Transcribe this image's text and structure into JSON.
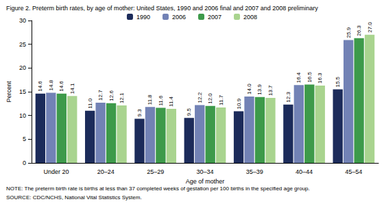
{
  "chart_data": {
    "type": "bar",
    "title": "Figure 2. Preterm birth rates, by age of mother: United States, 1990 and 2006 final and 2007 and 2008 preliminary",
    "x_label": "Age of mother",
    "y_label": "Percent",
    "categories": [
      "Under 20",
      "20–24",
      "25–29",
      "30–34",
      "35–39",
      "40–44",
      "45–54"
    ],
    "series": [
      {
        "name": "1990",
        "color": "#1c2b5a",
        "values": [
          14.6,
          11.0,
          9.3,
          9.5,
          10.9,
          12.3,
          15.5
        ],
        "value_labels": [
          "14.6",
          "11.0",
          "9.3",
          "9.5",
          "10.9",
          "12.3",
          "15.5"
        ]
      },
      {
        "name": "2006",
        "color": "#7282b5",
        "values": [
          14.8,
          12.7,
          11.8,
          12.2,
          14.0,
          16.4,
          25.9
        ],
        "value_labels": [
          "14.8",
          "12.7",
          "11.8",
          "12.2",
          "14.0",
          "16.4",
          "25.9"
        ]
      },
      {
        "name": "2007",
        "color": "#3d9a4a",
        "values": [
          14.6,
          12.6,
          11.6,
          12.0,
          13.9,
          16.5,
          26.3
        ],
        "value_labels": [
          "14.6",
          "12.6",
          "11.6",
          "12.0",
          "13.9",
          "16.5",
          "26.3"
        ]
      },
      {
        "name": "2008",
        "color": "#a9d48f",
        "values": [
          14.1,
          12.1,
          11.4,
          11.7,
          13.7,
          16.3,
          27.0
        ],
        "value_labels": [
          "14.1",
          "12.1",
          "11.4",
          "11.7",
          "13.7",
          "16.3",
          "27.0"
        ]
      }
    ],
    "ylim": [
      0,
      30
    ],
    "yticks": [
      0,
      5,
      10,
      15,
      20,
      25,
      30
    ],
    "grid": false,
    "legend": "top",
    "data_labels": true,
    "annotations": [
      "NOTE: The preterm birth rate is births at less than 37 completed weeks of gestation per 100 births in the specified age group.",
      "SOURCE: CDC/NCHS, National Vital Statistics System."
    ]
  }
}
